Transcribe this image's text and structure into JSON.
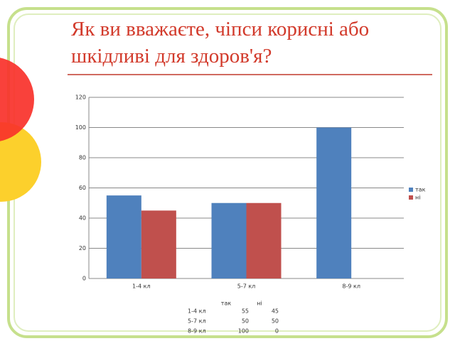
{
  "chart_data": {
    "type": "bar",
    "title": "Як ви вважаєте, чіпси корисні або шкідливі для здоров'я?",
    "categories": [
      "1-4 кл",
      "5-7 кл",
      "8-9 кл"
    ],
    "series": [
      {
        "name": "так",
        "color": "#4f81bd",
        "values": [
          55,
          50,
          100
        ]
      },
      {
        "name": "ні",
        "color": "#c0504d",
        "values": [
          45,
          50,
          0
        ]
      }
    ],
    "ylim": [
      0,
      120
    ],
    "yticks": [
      0,
      20,
      40,
      60,
      80,
      100,
      120
    ],
    "grid": true,
    "legend": "right"
  }
}
